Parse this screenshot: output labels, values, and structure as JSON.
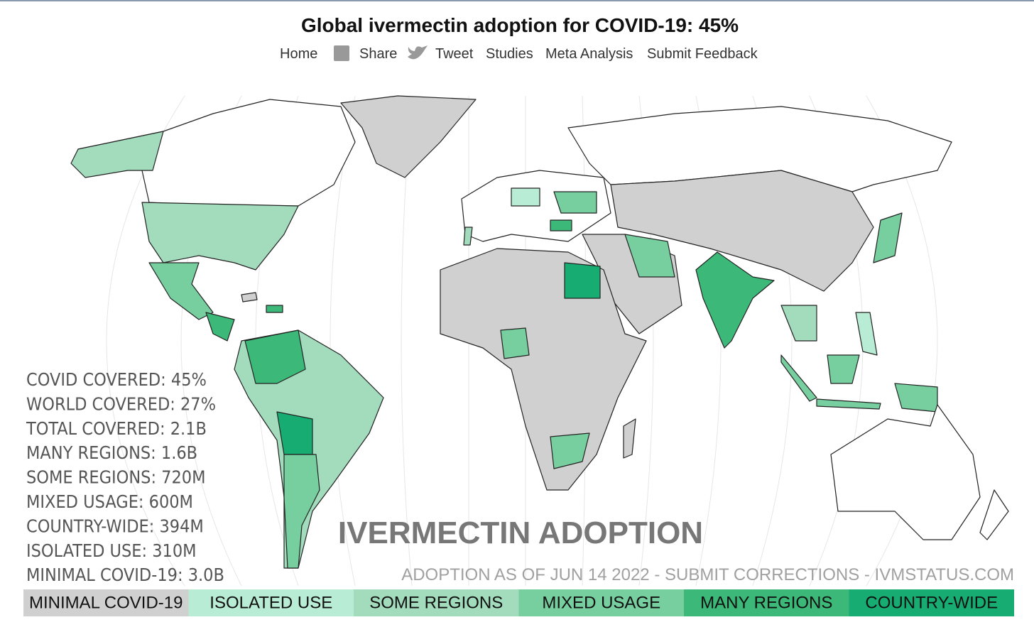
{
  "header": {
    "title": "Global ivermectin adoption for COVID-19: 45%",
    "nav": [
      "Home",
      "Share",
      "Tweet",
      "Studies",
      "Meta Analysis",
      "Submit Feedback"
    ]
  },
  "stats": [
    "COVID COVERED: 45%",
    "WORLD COVERED: 27%",
    "TOTAL COVERED: 2.1B",
    "MANY REGIONS: 1.6B",
    "SOME REGIONS: 720M",
    "MIXED USAGE: 600M",
    "COUNTRY-WIDE: 394M",
    "ISOLATED USE: 310M",
    "MINIMAL COVID-19: 3.0B"
  ],
  "map": {
    "heading": "IVERMECTIN ADOPTION",
    "note": "ADOPTION AS OF JUN 14 2022 - SUBMIT CORRECTIONS - IVMSTATUS.COM"
  },
  "legend": [
    {
      "label": "MINIMAL COVID-19",
      "color": "#d0d0d0"
    },
    {
      "label": "ISOLATED USE",
      "color": "#b9ecd4"
    },
    {
      "label": "SOME REGIONS",
      "color": "#a3dbbd"
    },
    {
      "label": "MIXED USAGE",
      "color": "#77cfa0"
    },
    {
      "label": "MANY REGIONS",
      "color": "#3cb878"
    },
    {
      "label": "COUNTRY-WIDE",
      "color": "#17ad72"
    }
  ]
}
